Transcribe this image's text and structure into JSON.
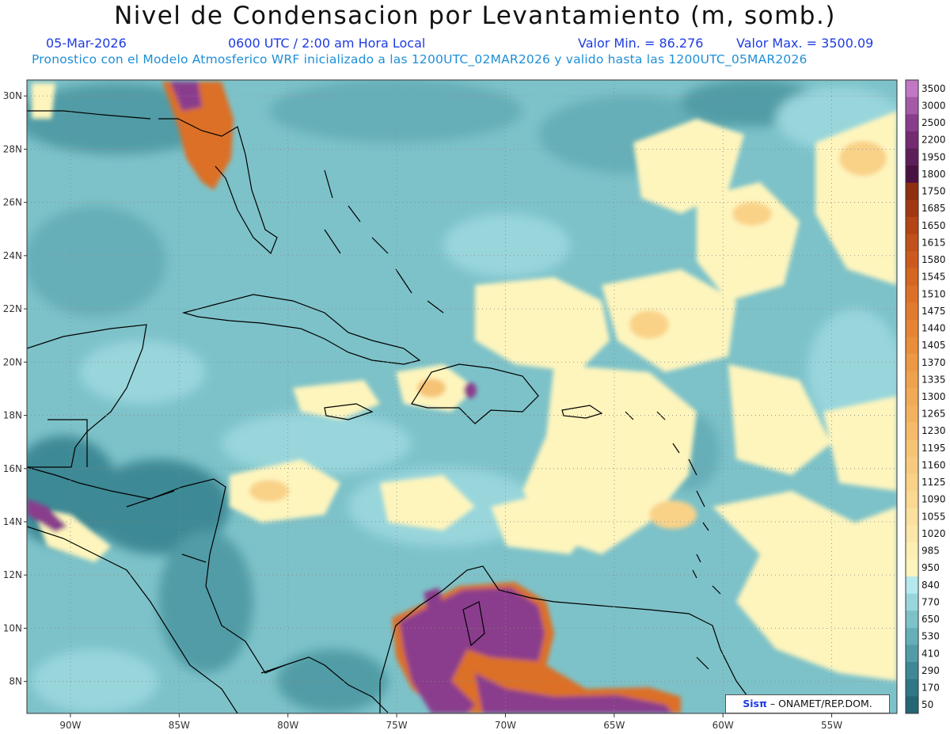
{
  "header": {
    "title": "Nivel de Condensacion por Levantamiento (m, somb.)",
    "date": "05-Mar-2026",
    "time": "0600 UTC / 2:00 am Hora Local",
    "valor_min": "Valor Min. = 86.276",
    "valor_max": "Valor Max. = 3500.09",
    "forecast_note": "Pronostico con el Modelo Atmosferico WRF inicializado a las 1200UTC_02MAR2026 y valido hasta las  1200UTC_05MAR2026"
  },
  "axes": {
    "lon_labels": [
      "90W",
      "85W",
      "80W",
      "75W",
      "70W",
      "65W",
      "60W",
      "55W"
    ],
    "lon_values": [
      -90,
      -85,
      -80,
      -75,
      -70,
      -65,
      -60,
      -55
    ],
    "lat_labels": [
      "30N",
      "28N",
      "26N",
      "24N",
      "22N",
      "20N",
      "18N",
      "16N",
      "14N",
      "12N",
      "10N",
      "8N"
    ],
    "lat_values": [
      30,
      28,
      26,
      24,
      22,
      20,
      18,
      16,
      14,
      12,
      10,
      8
    ],
    "lon_range": [
      -92,
      -52
    ],
    "lat_range": [
      6.8,
      30.6
    ],
    "gridlines": "dotted"
  },
  "colorbar": {
    "labels": [
      "3500",
      "3000",
      "2500",
      "2200",
      "1950",
      "1800",
      "1750",
      "1685",
      "1650",
      "1615",
      "1580",
      "1545",
      "1510",
      "1475",
      "1440",
      "1405",
      "1370",
      "1335",
      "1300",
      "1265",
      "1230",
      "1195",
      "1160",
      "1125",
      "1090",
      "1055",
      "1020",
      "985",
      "950",
      "840",
      "770",
      "650",
      "530",
      "410",
      "290",
      "170",
      "50"
    ],
    "colors": [
      "#c178c4",
      "#a55aa8",
      "#8a3d8c",
      "#732c72",
      "#5c1f5a",
      "#4a1242",
      "#8e2f0f",
      "#a13812",
      "#b24416",
      "#c2501a",
      "#cc5a1e",
      "#d56622",
      "#dc7028",
      "#e27a2e",
      "#e68434",
      "#ea8e3a",
      "#ed9842",
      "#efa24c",
      "#f1aa55",
      "#f3b260",
      "#f5ba6a",
      "#f6c274",
      "#f8ca7e",
      "#f9d288",
      "#fbd993",
      "#fce09d",
      "#fde7a8",
      "#fdeeb2",
      "#fef5bd",
      "#b5e9ee",
      "#98d6dc",
      "#7dc2c9",
      "#66afb8",
      "#519ca6",
      "#3e8995",
      "#2f7784",
      "#236674"
    ]
  },
  "credit": {
    "logo": "Sisπ",
    "text": "– ONAMET/REP.DOM."
  }
}
